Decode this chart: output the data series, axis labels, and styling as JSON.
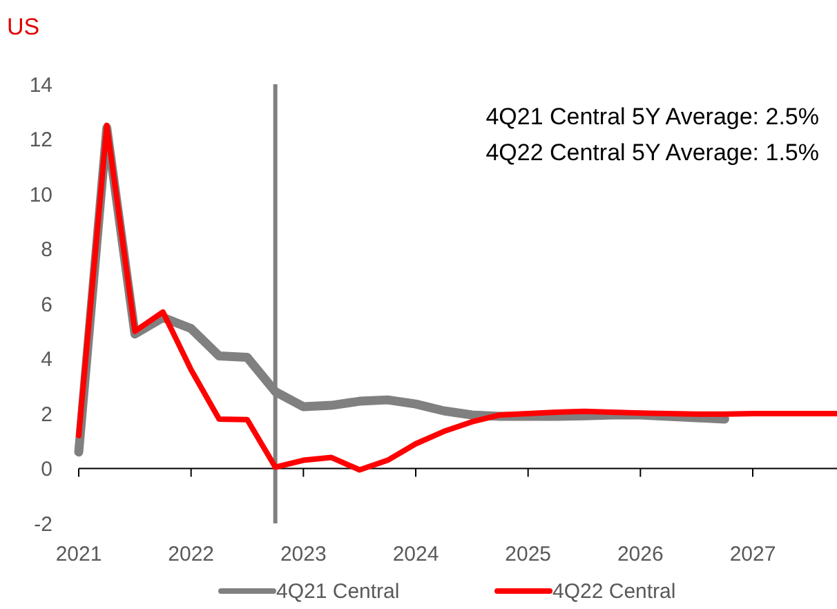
{
  "chart_data": {
    "type": "line",
    "title": "US",
    "annotations": [
      "4Q21 Central 5Y Average: 2.5%",
      "4Q22 Central 5Y Average: 1.5%"
    ],
    "x": [
      2021,
      2021.25,
      2021.5,
      2021.75,
      2022,
      2022.25,
      2022.5,
      2022.75,
      2023,
      2023.25,
      2023.5,
      2023.75,
      2024,
      2024.25,
      2024.5,
      2024.75,
      2025,
      2025.25,
      2025.5,
      2025.75,
      2026,
      2026.25,
      2026.5,
      2026.75,
      2027,
      2027.25,
      2027.5,
      2027.75
    ],
    "series": [
      {
        "name": "4Q21 Central",
        "color": "#808080",
        "values": [
          0.6,
          12.4,
          4.9,
          5.5,
          5.1,
          4.1,
          4.05,
          2.8,
          2.25,
          2.3,
          2.45,
          2.5,
          2.35,
          2.1,
          1.95,
          1.9,
          1.9,
          1.9,
          1.92,
          1.95,
          1.95,
          1.9,
          1.85,
          1.8,
          null,
          null,
          null,
          null
        ]
      },
      {
        "name": "4Q22 Central",
        "color": "#ff0000",
        "values": [
          1.2,
          12.5,
          5.0,
          5.7,
          3.6,
          1.8,
          1.78,
          0.05,
          0.3,
          0.4,
          -0.05,
          0.3,
          0.9,
          1.35,
          1.7,
          1.95,
          2.0,
          2.05,
          2.08,
          2.05,
          2.02,
          2.0,
          1.98,
          1.98,
          2.0,
          2.0,
          2.0,
          2.0
        ]
      }
    ],
    "xlim": [
      2021,
      2027.75
    ],
    "xticks": [
      2021,
      2022,
      2023,
      2024,
      2025,
      2026,
      2027
    ],
    "ylim": [
      -2,
      14
    ],
    "yticks": [
      -2,
      0,
      2,
      4,
      6,
      8,
      10,
      12,
      14
    ],
    "ref_lines": [
      {
        "axis": "x",
        "value": 2022.75,
        "color": "#808080"
      }
    ],
    "legend": "bottom",
    "line_style": "solid",
    "marker": "none"
  }
}
